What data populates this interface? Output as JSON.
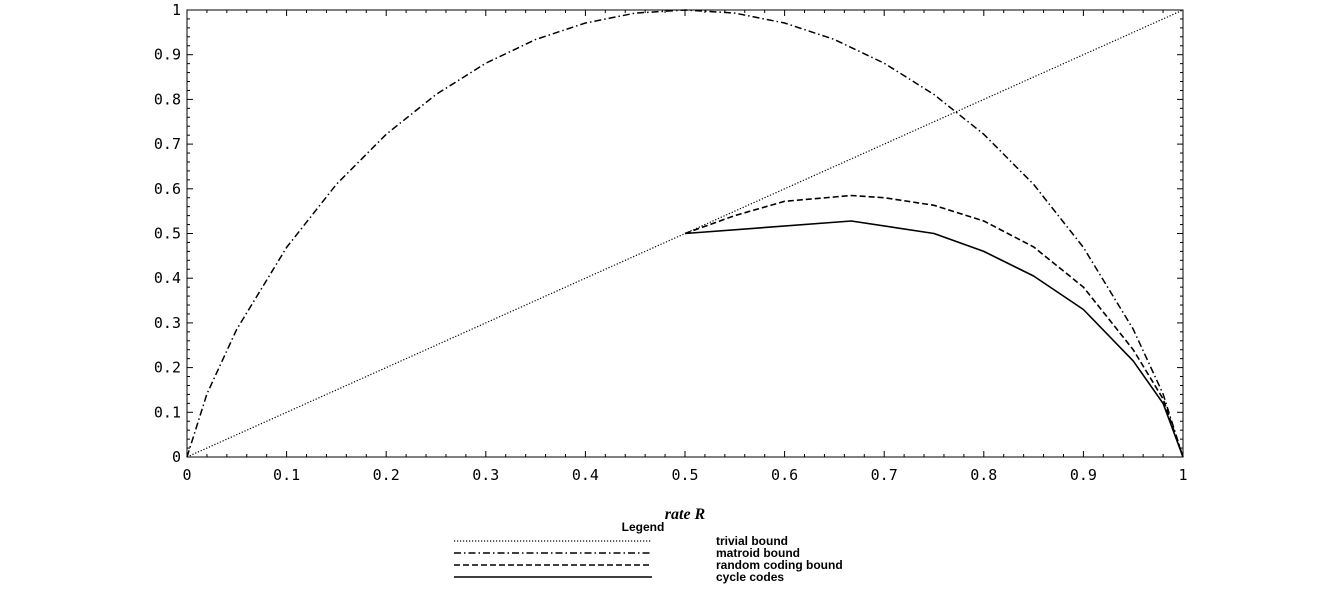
{
  "chart_data": {
    "type": "line",
    "title": "",
    "xlabel": "rate R",
    "ylabel": "",
    "xlim": [
      0,
      1
    ],
    "ylim": [
      0,
      1
    ],
    "grid": false,
    "legend_position": "below",
    "x_tick_labels": [
      "0",
      "0.1",
      "0.2",
      "0.3",
      "0.4",
      "0.5",
      "0.6",
      "0.7",
      "0.8",
      "0.9",
      "1"
    ],
    "y_tick_labels": [
      "0",
      "0.1",
      "0.2",
      "0.3",
      "0.4",
      "0.5",
      "0.6",
      "0.7",
      "0.8",
      "0.9",
      "1"
    ],
    "legend_title": "Legend",
    "series": [
      {
        "name": "trivial bound",
        "style": "dotted",
        "x": [
          0,
          1
        ],
        "y": [
          0,
          1
        ]
      },
      {
        "name": "matroid bound",
        "style": "dashdot",
        "x": [
          0,
          0.02,
          0.05,
          0.1,
          0.15,
          0.2,
          0.25,
          0.3,
          0.35,
          0.4,
          0.45,
          0.5,
          0.55,
          0.6,
          0.65,
          0.7,
          0.75,
          0.8,
          0.85,
          0.9,
          0.95,
          0.98,
          1
        ],
        "y": [
          0,
          0.141,
          0.286,
          0.469,
          0.61,
          0.722,
          0.811,
          0.881,
          0.934,
          0.971,
          0.993,
          1.0,
          0.993,
          0.971,
          0.934,
          0.881,
          0.811,
          0.722,
          0.61,
          0.469,
          0.286,
          0.141,
          0
        ]
      },
      {
        "name": "random coding bound",
        "style": "dashed",
        "x": [
          0.5,
          0.55,
          0.6,
          0.667,
          0.7,
          0.75,
          0.8,
          0.85,
          0.9,
          0.95,
          0.98,
          1
        ],
        "y": [
          0.5,
          0.54,
          0.572,
          0.585,
          0.58,
          0.563,
          0.528,
          0.47,
          0.38,
          0.24,
          0.13,
          0
        ]
      },
      {
        "name": "cycle codes",
        "style": "solid",
        "x": [
          0.5,
          0.667,
          0.75,
          0.8,
          0.85,
          0.9,
          0.95,
          0.98,
          1
        ],
        "y": [
          0.5,
          0.528,
          0.5,
          0.46,
          0.405,
          0.33,
          0.215,
          0.12,
          0
        ]
      }
    ]
  }
}
